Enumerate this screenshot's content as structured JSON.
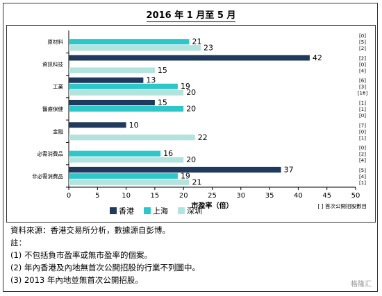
{
  "chart_data": {
    "type": "bar",
    "title": "2016 年 1 月至 5 月",
    "xlabel": "市盈率（倍）",
    "xlim": [
      0,
      50
    ],
    "xticks": [
      0,
      5,
      10,
      15,
      20,
      25,
      30,
      35,
      40,
      45,
      50
    ],
    "categories": [
      "原材料",
      "資訊科技",
      "工業",
      "醫療保健",
      "金融",
      "必需消費品",
      "非必需消費品"
    ],
    "series": [
      {
        "name": "香港",
        "color": "#1f3a5c",
        "values": [
          null,
          42,
          13,
          15,
          10,
          null,
          37
        ]
      },
      {
        "name": "上海",
        "color": "#2ec7c9",
        "values": [
          21,
          null,
          19,
          20,
          null,
          16,
          19
        ]
      },
      {
        "name": "深圳",
        "color": "#b2e3dc",
        "values": [
          23,
          15,
          20,
          null,
          22,
          20,
          21
        ]
      }
    ],
    "ipo_counts": [
      [
        "[0]",
        "[5]",
        "[2]"
      ],
      [
        "[2]",
        "[0]",
        "[4]"
      ],
      [
        "[6]",
        "[3]",
        "[16]"
      ],
      [
        "[1]",
        "[1]",
        "[0]"
      ],
      [
        "[7]",
        "[0]",
        "[1]"
      ],
      [
        "[0]",
        "[2]",
        "[4]"
      ],
      [
        "[5]",
        "[4]",
        "[1]"
      ]
    ],
    "ipo_legend": "[ ] 首次公開招股數目",
    "legend_position": "bottom",
    "grid": false
  },
  "notes": {
    "source": "資料來源：香港交易所分析，數據源自彭博。",
    "heading": "註：",
    "items": [
      "(1)  不包括負市盈率或無市盈率的個案。",
      "(2)  年內香港及內地無首次公開招股的行業不列圖中。",
      "(3) 2013 年內地並無首次公開招股。"
    ]
  },
  "watermark": "格隆汇"
}
